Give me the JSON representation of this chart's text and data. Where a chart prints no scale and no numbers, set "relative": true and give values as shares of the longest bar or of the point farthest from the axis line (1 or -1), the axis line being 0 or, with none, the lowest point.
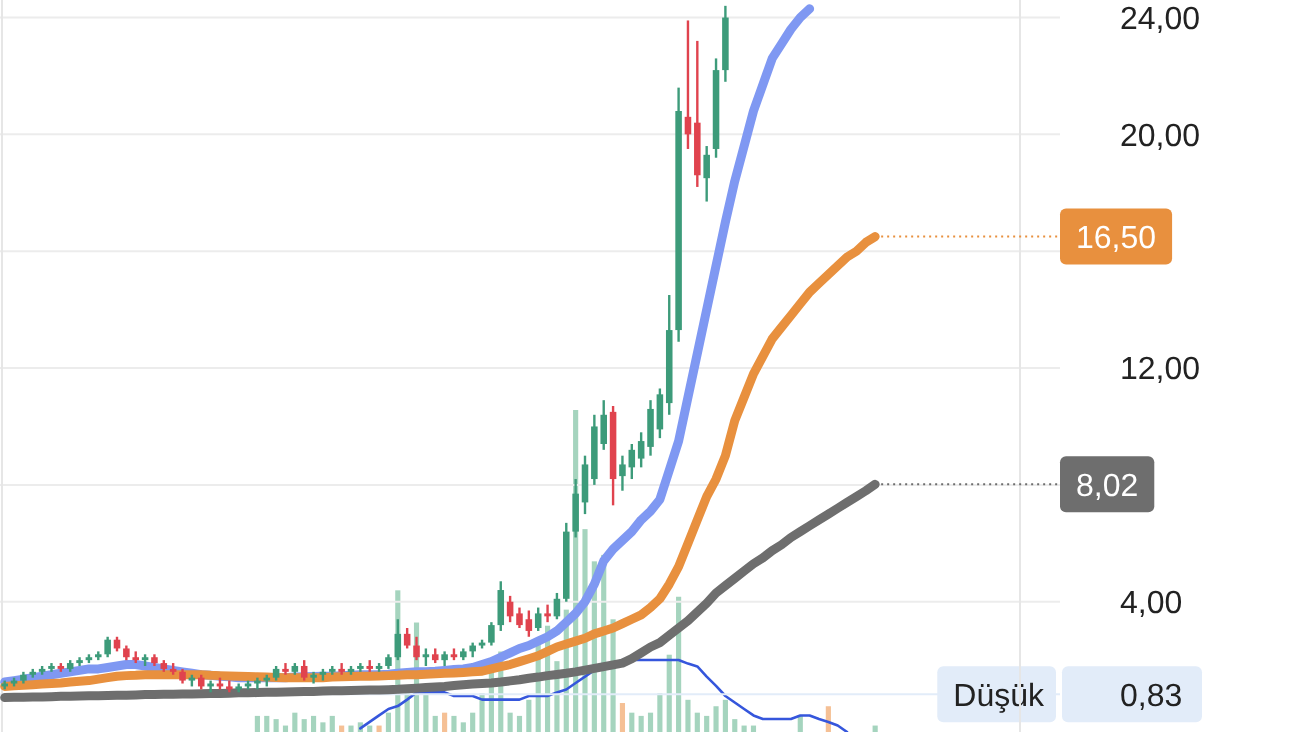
{
  "chart_data": [
    {
      "type": "candlestick",
      "categories": [
        null,
        null,
        null,
        null,
        null,
        null,
        null,
        null,
        null,
        null,
        null,
        null,
        null,
        null,
        null,
        null,
        null,
        null,
        null,
        null,
        null,
        null,
        null,
        null,
        null,
        null,
        null,
        null,
        null,
        null,
        null,
        null,
        null,
        null,
        null,
        null,
        null,
        null,
        null,
        null,
        null,
        null,
        null,
        null,
        null,
        null,
        null,
        null,
        null,
        null,
        null,
        null,
        null,
        null,
        null,
        null,
        null,
        null,
        null,
        null,
        null,
        null,
        null,
        null,
        null,
        null,
        null,
        null,
        null,
        null,
        null,
        null,
        null,
        null,
        null,
        null,
        null,
        null,
        null,
        null,
        null,
        null,
        null,
        null,
        null,
        null,
        null,
        null,
        null,
        null,
        null,
        null,
        null,
        null
      ],
      "ylim": [
        -0.46,
        24.6
      ],
      "yticks": [
        {
          "value": 0.83,
          "label": "0,83"
        },
        {
          "value": 4,
          "label": "4,00"
        },
        {
          "value": 8,
          "label": null
        },
        {
          "value": 12,
          "label": "12,00"
        },
        {
          "value": 16,
          "label": null
        },
        {
          "value": 20,
          "label": "20,00"
        },
        {
          "value": 24,
          "label": "24,00"
        }
      ],
      "grid": "y",
      "ohlc": [
        [
          1.1,
          1.3,
          1.0,
          1.2
        ],
        [
          1.2,
          1.4,
          1.1,
          1.3
        ],
        [
          1.3,
          1.6,
          1.2,
          1.5
        ],
        [
          1.5,
          1.7,
          1.4,
          1.6
        ],
        [
          1.6,
          1.8,
          1.5,
          1.7
        ],
        [
          1.7,
          1.9,
          1.6,
          1.8
        ],
        [
          1.8,
          1.9,
          1.6,
          1.7
        ],
        [
          1.7,
          2.0,
          1.6,
          1.9
        ],
        [
          1.9,
          2.1,
          1.8,
          2.0
        ],
        [
          2.0,
          2.2,
          1.9,
          2.1
        ],
        [
          2.1,
          2.3,
          2.0,
          2.2
        ],
        [
          2.2,
          2.8,
          2.1,
          2.7
        ],
        [
          2.7,
          2.8,
          2.3,
          2.4
        ],
        [
          2.4,
          2.5,
          2.0,
          2.1
        ],
        [
          2.1,
          2.3,
          1.9,
          2.0
        ],
        [
          2.0,
          2.2,
          1.8,
          2.1
        ],
        [
          2.1,
          2.2,
          1.8,
          1.9
        ],
        [
          1.9,
          2.0,
          1.6,
          1.7
        ],
        [
          1.7,
          1.9,
          1.5,
          1.6
        ],
        [
          1.6,
          1.7,
          1.2,
          1.3
        ],
        [
          1.3,
          1.5,
          1.1,
          1.4
        ],
        [
          1.4,
          1.5,
          1.0,
          1.1
        ],
        [
          1.1,
          1.3,
          0.9,
          1.2
        ],
        [
          1.2,
          1.4,
          1.0,
          1.1
        ],
        [
          1.1,
          1.3,
          0.9,
          1.0
        ],
        [
          1.0,
          1.2,
          0.9,
          1.1
        ],
        [
          1.1,
          1.3,
          1.0,
          1.2
        ],
        [
          1.2,
          1.4,
          1.0,
          1.3
        ],
        [
          1.3,
          1.5,
          1.1,
          1.4
        ],
        [
          1.4,
          1.8,
          1.3,
          1.7
        ],
        [
          1.7,
          1.9,
          1.5,
          1.6
        ],
        [
          1.6,
          1.9,
          1.5,
          1.8
        ],
        [
          1.8,
          2.0,
          1.3,
          1.4
        ],
        [
          1.4,
          1.6,
          1.2,
          1.5
        ],
        [
          1.5,
          1.7,
          1.3,
          1.6
        ],
        [
          1.6,
          1.8,
          1.5,
          1.7
        ],
        [
          1.7,
          1.9,
          1.5,
          1.6
        ],
        [
          1.6,
          1.8,
          1.5,
          1.7
        ],
        [
          1.7,
          1.9,
          1.6,
          1.8
        ],
        [
          1.8,
          2.0,
          1.6,
          1.7
        ],
        [
          1.7,
          1.9,
          1.6,
          1.8
        ],
        [
          1.8,
          2.2,
          1.7,
          2.1
        ],
        [
          2.1,
          3.4,
          2.0,
          2.9
        ],
        [
          2.9,
          3.1,
          2.4,
          2.5
        ],
        [
          2.5,
          2.8,
          2.0,
          2.1
        ],
        [
          2.1,
          2.4,
          1.8,
          2.2
        ],
        [
          2.2,
          2.4,
          1.9,
          2.0
        ],
        [
          2.0,
          2.3,
          1.8,
          2.2
        ],
        [
          2.2,
          2.4,
          2.0,
          2.1
        ],
        [
          2.1,
          2.4,
          2.0,
          2.3
        ],
        [
          2.3,
          2.6,
          2.1,
          2.5
        ],
        [
          2.5,
          2.7,
          2.4,
          2.6
        ],
        [
          2.6,
          3.3,
          2.5,
          3.2
        ],
        [
          3.2,
          4.7,
          3.0,
          4.4
        ],
        [
          4.0,
          4.2,
          3.3,
          3.5
        ],
        [
          3.6,
          3.8,
          3.1,
          3.2
        ],
        [
          3.4,
          3.7,
          2.8,
          3.0
        ],
        [
          3.1,
          3.8,
          3.0,
          3.6
        ],
        [
          3.6,
          3.9,
          3.3,
          3.5
        ],
        [
          3.5,
          4.3,
          3.4,
          4.1
        ],
        [
          4.1,
          6.7,
          4.0,
          6.4
        ],
        [
          6.4,
          8.2,
          6.2,
          7.7
        ],
        [
          7.4,
          9.0,
          7.0,
          8.7
        ],
        [
          8.2,
          10.4,
          8.0,
          10.0
        ],
        [
          9.4,
          10.9,
          9.2,
          10.4
        ],
        [
          10.5,
          10.7,
          7.3,
          8.2
        ],
        [
          8.3,
          9.0,
          7.8,
          8.7
        ],
        [
          8.6,
          9.4,
          8.2,
          9.2
        ],
        [
          8.9,
          9.8,
          8.6,
          9.5
        ],
        [
          9.3,
          10.9,
          9.0,
          10.6
        ],
        [
          9.9,
          11.3,
          9.6,
          11.1
        ],
        [
          10.8,
          14.5,
          10.4,
          13.3
        ],
        [
          13.3,
          21.6,
          12.9,
          20.8
        ],
        [
          20.6,
          23.9,
          19.5,
          20.0
        ],
        [
          20.4,
          23.2,
          18.2,
          18.6
        ],
        [
          18.5,
          19.6,
          17.7,
          19.3
        ],
        [
          19.5,
          22.6,
          19.2,
          22.2
        ],
        [
          22.2,
          24.4,
          21.8,
          24.0
        ],
        null,
        null,
        null,
        null,
        null,
        null,
        null,
        null,
        null,
        null,
        null,
        null,
        null,
        null,
        null,
        null
      ],
      "colors": [
        "#3d9b7a",
        "#3d9b7a",
        "#3d9b7a",
        "#3d9b7a",
        "#3d9b7a",
        "#3d9b7a",
        "#e0434e",
        "#3d9b7a",
        "#3d9b7a",
        "#3d9b7a",
        "#3d9b7a",
        "#3d9b7a",
        "#e0434e",
        "#e0434e",
        "#e0434e",
        "#3d9b7a",
        "#e0434e",
        "#e0434e",
        "#e0434e",
        "#e0434e",
        "#3d9b7a",
        "#e0434e",
        "#3d9b7a",
        "#e0434e",
        "#e0434e",
        "#3d9b7a",
        "#3d9b7a",
        "#3d9b7a",
        "#3d9b7a",
        "#3d9b7a",
        "#e0434e",
        "#3d9b7a",
        "#e0434e",
        "#3d9b7a",
        "#3d9b7a",
        "#3d9b7a",
        "#e0434e",
        "#3d9b7a",
        "#3d9b7a",
        "#e0434e",
        "#3d9b7a",
        "#3d9b7a",
        "#3d9b7a",
        "#e0434e",
        "#e0434e",
        "#3d9b7a",
        "#e0434e",
        "#3d9b7a",
        "#e0434e",
        "#3d9b7a",
        "#3d9b7a",
        "#3d9b7a",
        "#3d9b7a",
        "#3d9b7a",
        "#e0434e",
        "#e0434e",
        "#e0434e",
        "#3d9b7a",
        "#e0434e",
        "#3d9b7a",
        "#3d9b7a",
        "#3d9b7a",
        "#3d9b7a",
        "#3d9b7a",
        "#3d9b7a",
        "#e0434e",
        "#3d9b7a",
        "#3d9b7a",
        "#3d9b7a",
        "#3d9b7a",
        "#3d9b7a",
        "#3d9b7a",
        "#3d9b7a",
        "#e0434e",
        "#e0434e",
        "#3d9b7a",
        "#3d9b7a",
        "#3d9b7a",
        null,
        null,
        null,
        null,
        null,
        null,
        null,
        null,
        null,
        null,
        null,
        null,
        null,
        null,
        null,
        null
      ],
      "series": [
        {
          "type": "line",
          "color": "#7f98f2",
          "values": [
            1.25,
            1.3,
            1.35,
            1.4,
            1.45,
            1.5,
            1.55,
            1.6,
            1.65,
            1.7,
            1.7,
            1.75,
            1.8,
            1.85,
            1.85,
            1.8,
            1.75,
            1.7,
            1.65,
            1.6,
            1.55,
            1.5,
            1.48,
            1.45,
            1.43,
            1.4,
            1.4,
            1.4,
            1.4,
            1.4,
            1.4,
            1.42,
            1.43,
            1.44,
            1.45,
            1.45,
            1.47,
            1.48,
            1.5,
            1.5,
            1.5,
            1.52,
            1.55,
            1.58,
            1.6,
            1.6,
            1.62,
            1.65,
            1.68,
            1.7,
            1.75,
            1.85,
            1.95,
            2.1,
            2.25,
            2.4,
            2.5,
            2.65,
            2.8,
            3.0,
            3.3,
            3.6,
            4.0,
            4.6,
            5.4,
            5.8,
            6.1,
            6.4,
            6.8,
            7.1,
            7.5,
            8.5,
            9.5,
            11.0,
            12.5,
            14.0,
            15.5,
            17.0,
            18.4,
            19.6,
            20.8,
            21.7,
            22.6,
            23.1,
            23.6,
            24.0,
            24.3,
            null,
            null,
            null,
            null,
            null,
            null,
            null
          ]
        },
        {
          "type": "line",
          "color": "#e8903e",
          "value_labels": [
            null,
            null,
            null,
            null,
            null,
            null,
            null,
            null,
            null,
            null,
            null,
            null,
            null,
            null,
            null,
            null,
            null,
            null,
            null,
            null,
            null,
            null,
            null,
            null,
            null,
            null,
            null,
            null,
            null,
            null,
            null,
            null,
            null,
            null,
            null,
            null,
            null,
            null,
            null,
            null,
            null,
            null,
            null,
            null,
            null,
            null,
            null,
            null,
            null,
            null,
            null,
            null,
            null,
            null,
            null,
            null,
            null,
            null,
            null,
            null,
            null,
            null,
            null,
            null,
            null,
            null,
            null,
            null,
            null,
            null,
            null,
            null,
            null,
            null,
            null,
            null,
            null,
            null,
            null,
            null,
            null,
            null,
            null,
            null,
            null,
            null,
            null,
            null,
            null,
            null,
            null,
            null,
            null,
            "16,50"
          ],
          "values": [
            1.1,
            1.12,
            1.14,
            1.16,
            1.18,
            1.2,
            1.22,
            1.25,
            1.28,
            1.3,
            1.35,
            1.4,
            1.45,
            1.47,
            1.48,
            1.5,
            1.5,
            1.5,
            1.5,
            1.5,
            1.5,
            1.5,
            1.48,
            1.47,
            1.46,
            1.45,
            1.44,
            1.43,
            1.42,
            1.41,
            1.4,
            1.4,
            1.4,
            1.4,
            1.4,
            1.42,
            1.43,
            1.44,
            1.45,
            1.45,
            1.46,
            1.47,
            1.48,
            1.5,
            1.5,
            1.52,
            1.53,
            1.55,
            1.56,
            1.58,
            1.6,
            1.62,
            1.7,
            1.78,
            1.85,
            1.95,
            2.05,
            2.15,
            2.3,
            2.45,
            2.55,
            2.65,
            2.75,
            2.9,
            3.0,
            3.1,
            3.25,
            3.4,
            3.55,
            3.8,
            4.1,
            4.6,
            5.2,
            6.0,
            6.8,
            7.6,
            8.2,
            9.0,
            10.2,
            11.0,
            11.8,
            12.4,
            13.0,
            13.4,
            13.8,
            14.2,
            14.6,
            14.9,
            15.2,
            15.5,
            15.8,
            16.0,
            16.3,
            16.5
          ]
        },
        {
          "type": "line",
          "color": "#6e6e6e",
          "value_labels": [
            null,
            null,
            null,
            null,
            null,
            null,
            null,
            null,
            null,
            null,
            null,
            null,
            null,
            null,
            null,
            null,
            null,
            null,
            null,
            null,
            null,
            null,
            null,
            null,
            null,
            null,
            null,
            null,
            null,
            null,
            null,
            null,
            null,
            null,
            null,
            null,
            null,
            null,
            null,
            null,
            null,
            null,
            null,
            null,
            null,
            null,
            null,
            null,
            null,
            null,
            null,
            null,
            null,
            null,
            null,
            null,
            null,
            null,
            null,
            null,
            null,
            null,
            null,
            null,
            null,
            null,
            null,
            null,
            null,
            null,
            null,
            null,
            null,
            null,
            null,
            null,
            null,
            null,
            null,
            null,
            null,
            null,
            null,
            null,
            null,
            null,
            null,
            null,
            null,
            null,
            null,
            null,
            null,
            "8,02"
          ],
          "values": [
            0.72,
            0.73,
            0.73,
            0.74,
            0.74,
            0.75,
            0.76,
            0.76,
            0.77,
            0.78,
            0.78,
            0.79,
            0.8,
            0.8,
            0.81,
            0.82,
            0.82,
            0.83,
            0.83,
            0.84,
            0.84,
            0.85,
            0.86,
            0.86,
            0.87,
            0.88,
            0.88,
            0.89,
            0.9,
            0.9,
            0.91,
            0.92,
            0.93,
            0.93,
            0.94,
            0.95,
            0.95,
            0.96,
            0.97,
            0.98,
            0.98,
            0.99,
            1.0,
            1.02,
            1.04,
            1.06,
            1.08,
            1.1,
            1.13,
            1.16,
            1.18,
            1.2,
            1.22,
            1.25,
            1.29,
            1.33,
            1.38,
            1.42,
            1.47,
            1.51,
            1.55,
            1.6,
            1.66,
            1.72,
            1.78,
            1.84,
            1.9,
            2.05,
            2.25,
            2.45,
            2.6,
            2.85,
            3.1,
            3.35,
            3.65,
            3.95,
            4.3,
            4.55,
            4.8,
            5.05,
            5.3,
            5.5,
            5.75,
            5.95,
            6.2,
            6.4,
            6.6,
            6.8,
            7.0,
            7.2,
            7.4,
            7.6,
            7.8,
            8.02
          ]
        }
      ],
      "ref_lines": [
        {
          "axis": "y",
          "value": 0.83,
          "label": "Düşük",
          "color": "#e2ecf9"
        }
      ]
    },
    {
      "type": "bar",
      "relative": true,
      "categories": [
        null,
        null,
        null,
        null,
        null,
        null,
        null,
        null,
        null,
        null,
        null,
        null,
        null,
        null,
        null,
        null,
        null,
        null,
        null,
        null,
        null,
        null,
        null,
        null,
        null,
        null,
        null,
        null,
        null,
        null,
        null,
        null,
        null,
        null,
        null,
        null,
        null,
        null,
        null,
        null,
        null,
        null,
        null,
        null,
        null,
        null,
        null,
        null,
        null,
        null,
        null,
        null,
        null,
        null,
        null,
        null,
        null,
        null,
        null,
        null,
        null,
        null,
        null,
        null,
        null,
        null,
        null,
        null,
        null,
        null,
        null,
        null,
        null,
        null,
        null,
        null,
        null,
        null,
        null,
        null,
        null,
        null,
        null,
        null,
        null,
        null,
        null,
        null,
        null,
        null,
        null,
        null,
        null,
        null
      ],
      "values": [
        null,
        null,
        null,
        null,
        null,
        null,
        null,
        null,
        null,
        null,
        null,
        null,
        null,
        null,
        null,
        null,
        null,
        null,
        null,
        null,
        null,
        null,
        null,
        null,
        null,
        null,
        null,
        0.05,
        0.05,
        0.04,
        0.02,
        0.06,
        0.04,
        0.05,
        0.03,
        0.05,
        0.02,
        0.02,
        0.03,
        0.02,
        0.02,
        0.06,
        0.44,
        0.14,
        0.34,
        0.12,
        0.05,
        0.06,
        0.05,
        0.03,
        0.06,
        0.12,
        0.19,
        0.25,
        0.06,
        0.05,
        0.1,
        0.27,
        0.33,
        0.22,
        0.38,
        1,
        0.63,
        0.53,
        0.55,
        0.35,
        0.09,
        0.06,
        0.05,
        0.06,
        0.12,
        0.24,
        0.42,
        0.1,
        0.06,
        0.05,
        0.08,
        0.1,
        0.04,
        0.02,
        0.02,
        null,
        null,
        null,
        null,
        0.05,
        null,
        null,
        0.08,
        null,
        null,
        null,
        null,
        0.02
      ],
      "colors": [
        null,
        null,
        null,
        null,
        null,
        null,
        null,
        null,
        null,
        null,
        null,
        null,
        null,
        null,
        null,
        null,
        null,
        null,
        null,
        null,
        null,
        null,
        null,
        null,
        null,
        null,
        null,
        "#8fc9ae",
        "#8fc9ae",
        "#8fc9ae",
        "#8fc9ae",
        "#8fc9ae",
        "#8fc9ae",
        "#8fc9ae",
        "#8fc9ae",
        "#8fc9ae",
        "#f3b07a",
        "#8fc9ae",
        "#8fc9ae",
        "#8fc9ae",
        "#f3b07a",
        "#8fc9ae",
        "#8fc9ae",
        "#8fc9ae",
        "#8fc9ae",
        "#8fc9ae",
        "#8fc9ae",
        "#f3b07a",
        "#8fc9ae",
        "#8fc9ae",
        "#8fc9ae",
        "#8fc9ae",
        "#8fc9ae",
        "#8fc9ae",
        "#8fc9ae",
        "#8fc9ae",
        "#8fc9ae",
        "#8fc9ae",
        "#8fc9ae",
        "#8fc9ae",
        "#8fc9ae",
        "#8fc9ae",
        "#8fc9ae",
        "#8fc9ae",
        "#8fc9ae",
        "#8fc9ae",
        "#f3b07a",
        "#8fc9ae",
        "#8fc9ae",
        "#8fc9ae",
        "#8fc9ae",
        "#8fc9ae",
        "#8fc9ae",
        "#8fc9ae",
        "#8fc9ae",
        "#8fc9ae",
        "#8fc9ae",
        "#8fc9ae",
        "#8fc9ae",
        "#8fc9ae",
        "#8fc9ae",
        null,
        null,
        null,
        null,
        "#8fc9ae",
        null,
        null,
        "#f3b07a",
        null,
        null,
        null,
        null,
        "#8fc9ae"
      ]
    },
    {
      "type": "line",
      "relative": true,
      "color": "#3556dc",
      "categories": [
        null,
        null,
        null,
        null,
        null,
        null,
        null,
        null,
        null,
        null,
        null,
        null,
        null,
        null,
        null,
        null,
        null,
        null,
        null,
        null,
        null,
        null,
        null,
        null,
        null,
        null,
        null,
        null,
        null,
        null,
        null,
        null,
        null,
        null,
        null,
        null,
        null,
        null,
        null,
        null,
        null,
        null,
        null,
        null,
        null,
        null,
        null,
        null,
        null,
        null,
        null,
        null,
        null,
        null,
        null,
        null,
        null,
        null,
        null,
        null,
        null,
        null,
        null,
        null,
        null,
        null,
        null,
        null,
        null,
        null,
        null,
        null,
        null,
        null,
        null,
        null,
        null,
        null,
        null,
        null,
        null,
        null,
        null,
        null,
        null,
        null,
        null,
        null,
        null,
        null,
        null,
        null,
        null,
        null
      ],
      "values": [
        null,
        null,
        null,
        null,
        null,
        null,
        null,
        null,
        null,
        null,
        null,
        null,
        null,
        null,
        null,
        null,
        null,
        null,
        null,
        null,
        null,
        null,
        null,
        null,
        null,
        null,
        null,
        null,
        null,
        null,
        null,
        null,
        null,
        null,
        null,
        null,
        null,
        null,
        0.05,
        0.14,
        0.23,
        0.32,
        0.36,
        0.45,
        0.55,
        0.55,
        0.55,
        0.55,
        0.5,
        0.5,
        0.5,
        0.45,
        0.45,
        0.45,
        0.45,
        0.45,
        0.5,
        0.5,
        0.5,
        0.55,
        0.59,
        0.68,
        0.77,
        0.86,
        0.91,
        0.95,
        1,
        1,
        1,
        1,
        1,
        1,
        1,
        0.95,
        0.91,
        0.77,
        0.64,
        0.5,
        0.41,
        0.32,
        0.23,
        0.18,
        0.18,
        0.18,
        0.18,
        0.23,
        0.23,
        0.18,
        0.14,
        0.09,
        0,
        null,
        null,
        null
      ]
    }
  ]
}
